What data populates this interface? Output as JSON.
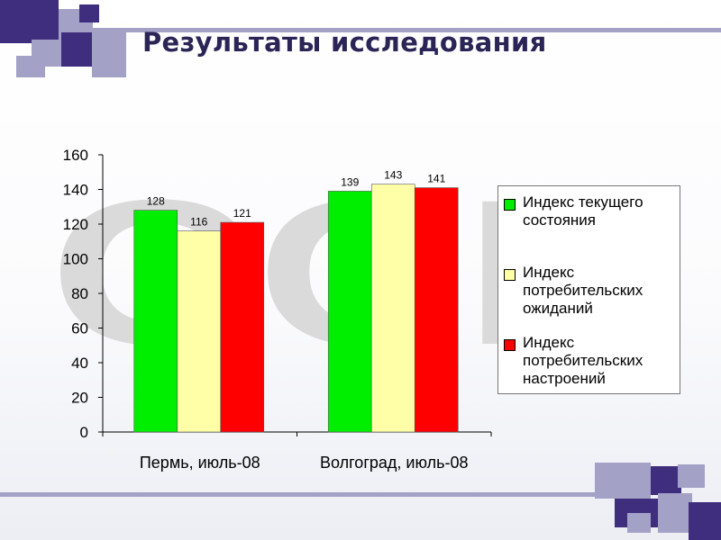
{
  "slide": {
    "title": "Результаты исследования"
  },
  "colors": {
    "accent_dark": "#3f2d7e",
    "accent_light": "#a3a1c6",
    "watermark": "#dadada"
  },
  "chart_data": {
    "type": "bar",
    "categories": [
      "Пермь, июль-08",
      "Волгоград, июль-08"
    ],
    "series": [
      {
        "name": "Индекс текущего\nсостояния",
        "values": [
          128,
          139
        ],
        "color": "#00ee00"
      },
      {
        "name": "Индекс\nпотребительских\nожиданий",
        "values": [
          116,
          143
        ],
        "color": "#ffffa8"
      },
      {
        "name": "Индекс\nпотребительских\nнастроений",
        "values": [
          121,
          141
        ],
        "color": "#ff0000"
      }
    ],
    "ylim": [
      0,
      160
    ],
    "yticks": [
      0,
      20,
      40,
      60,
      80,
      100,
      120,
      140,
      160
    ],
    "xlabel": "",
    "ylabel": "",
    "grid": false,
    "legend_position": "right",
    "watermark_text": "CCR"
  }
}
